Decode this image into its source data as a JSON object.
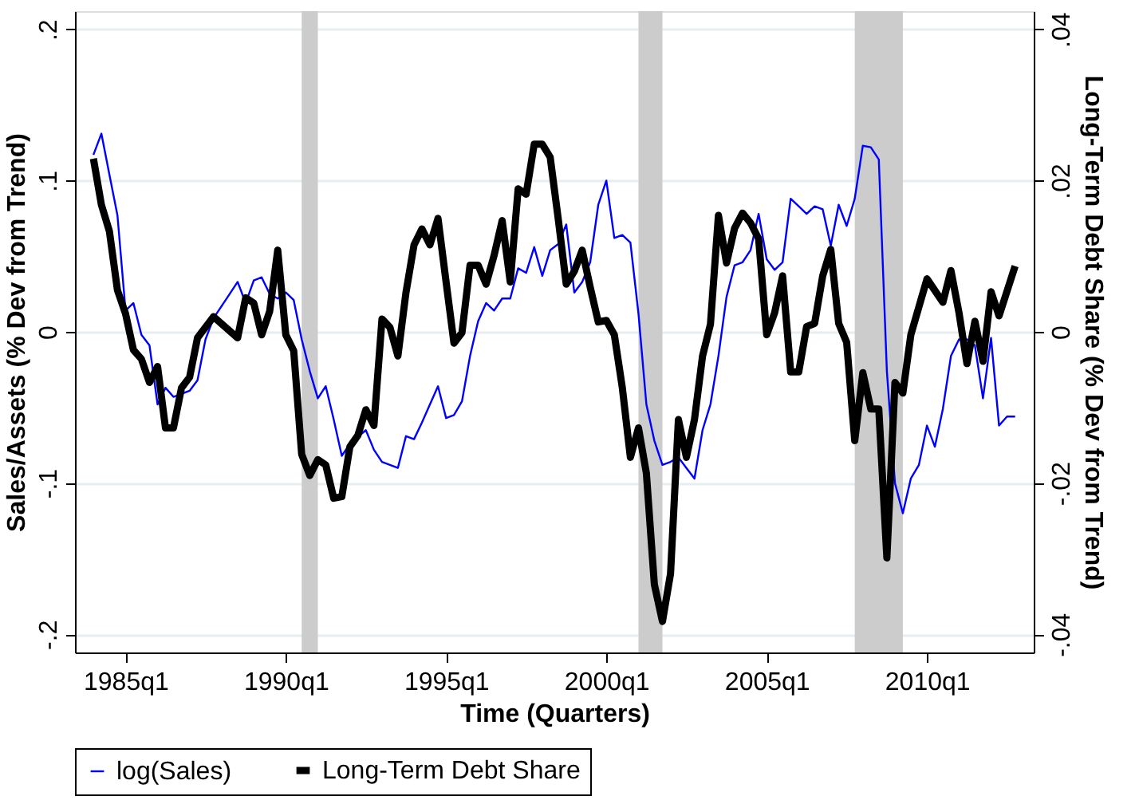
{
  "chart_data": {
    "type": "line",
    "xlabel": "Time (Quarters)",
    "ylabel": "Sales/Assets (% Dev from Trend)",
    "y2label": "Long-Term Debt Share (% Dev from Trend)",
    "xlim": [
      "1983-06-05",
      "2013-05-01"
    ],
    "xticks": [
      {
        "value": "1985-01",
        "label": "1985q1"
      },
      {
        "value": "1990-01",
        "label": "1990q1"
      },
      {
        "value": "1995-01",
        "label": "1995q1"
      },
      {
        "value": "2000-01",
        "label": "2000q1"
      },
      {
        "value": "2005-01",
        "label": "2005q1"
      },
      {
        "value": "2010-01",
        "label": "2010q1"
      }
    ],
    "ylim": [
      -0.212,
      0.212
    ],
    "yticks": [
      {
        "value": -0.2,
        "label": "-.2"
      },
      {
        "value": -0.1,
        "label": "-.1"
      },
      0,
      {
        "value": 0.1,
        "label": ".1"
      },
      {
        "value": 0.2,
        "label": ".2"
      }
    ],
    "y2lim": [
      -0.0424,
      0.0424
    ],
    "y2ticks": [
      {
        "value": -0.04,
        "label": "-.04"
      },
      {
        "value": -0.02,
        "label": "-.02"
      },
      0,
      {
        "value": 0.02,
        "label": ".02"
      },
      {
        "value": 0.04,
        "label": ".04"
      }
    ],
    "grid": "y",
    "legend": "bottom",
    "line_style": "solid",
    "marker": "none",
    "bands": [
      {
        "axis": "x",
        "from": "1990-07",
        "to": "1991-01",
        "color": "#cccccc"
      },
      {
        "axis": "x",
        "from": "2001-01",
        "to": "2001-10",
        "color": "#cccccc"
      },
      {
        "axis": "x",
        "from": "2007-10",
        "to": "2009-04",
        "color": "#cccccc"
      }
    ],
    "series": [
      {
        "name": "log(Sales)",
        "color": "#0000ff",
        "x": [
          "1984-01",
          "1984-04",
          "1984-07",
          "1984-10",
          "1985-01",
          "1985-04",
          "1985-07",
          "1985-10",
          "1986-01",
          "1986-04",
          "1986-07",
          "1987-01",
          "1987-04",
          "1987-07",
          "1987-10",
          "1988-04",
          "1988-07",
          "1988-10",
          "1989-01",
          "1989-04",
          "1989-07",
          "1989-10",
          "1990-01",
          "1990-04",
          "1990-07",
          "1990-10",
          "1991-01",
          "1991-04",
          "1991-07",
          "1991-10",
          "1992-01",
          "1992-07",
          "1992-10",
          "1993-01",
          "1993-07",
          "1993-10",
          "1994-01",
          "1994-04",
          "1994-07",
          "1994-10",
          "1995-01",
          "1995-04",
          "1995-07",
          "1995-10",
          "1996-01",
          "1996-04",
          "1996-07",
          "1996-10",
          "1997-01",
          "1997-04",
          "1997-07",
          "1997-10",
          "1998-01",
          "1998-04",
          "1998-07",
          "1998-10",
          "1999-01",
          "1999-04",
          "1999-07",
          "1999-10",
          "2000-01",
          "2000-04",
          "2000-07",
          "2000-10",
          "2001-01",
          "2001-04",
          "2001-07",
          "2001-10",
          "2002-01",
          "2002-04",
          "2002-07",
          "2002-10",
          "2003-01",
          "2003-04",
          "2003-07",
          "2003-10",
          "2004-01",
          "2004-04",
          "2004-07",
          "2004-10",
          "2005-01",
          "2005-04",
          "2005-07",
          "2005-10",
          "2006-01",
          "2006-04",
          "2006-07",
          "2006-10",
          "2007-01",
          "2007-04",
          "2007-07",
          "2007-10",
          "2008-01",
          "2008-04",
          "2008-07",
          "2008-10",
          "2009-01",
          "2009-04",
          "2009-07",
          "2009-10",
          "2010-01",
          "2010-04",
          "2010-07",
          "2010-10",
          "2011-01",
          "2011-04",
          "2011-07",
          "2011-10",
          "2012-01",
          "2012-04",
          "2012-07",
          "2012-10"
        ],
        "values": [
          0.117,
          0.131,
          0.104,
          0.077,
          0.014,
          0.019,
          -0.002,
          -0.009,
          -0.048,
          -0.037,
          -0.043,
          -0.039,
          -0.032,
          -0.005,
          0.009,
          0.025,
          0.033,
          0.019,
          0.034,
          0.036,
          0.025,
          0.022,
          0.026,
          0.021,
          -0.005,
          -0.026,
          -0.044,
          -0.036,
          -0.058,
          -0.082,
          -0.074,
          -0.065,
          -0.078,
          -0.086,
          -0.09,
          -0.069,
          -0.071,
          -0.06,
          -0.048,
          -0.036,
          -0.057,
          -0.055,
          -0.046,
          -0.016,
          0.007,
          0.019,
          0.014,
          0.022,
          0.022,
          0.042,
          0.039,
          0.056,
          0.037,
          0.054,
          0.058,
          0.071,
          0.026,
          0.033,
          0.046,
          0.084,
          0.1,
          0.062,
          0.064,
          0.059,
          0.012,
          -0.048,
          -0.072,
          -0.088,
          -0.086,
          -0.083,
          -0.09,
          -0.097,
          -0.065,
          -0.048,
          -0.016,
          0.023,
          0.044,
          0.046,
          0.054,
          0.078,
          0.048,
          0.041,
          0.046,
          0.088,
          0.083,
          0.078,
          0.083,
          0.081,
          0.057,
          0.084,
          0.07,
          0.088,
          0.123,
          0.122,
          0.114,
          -0.026,
          -0.1,
          -0.12,
          -0.097,
          -0.088,
          -0.062,
          -0.076,
          -0.051,
          -0.016,
          -0.005,
          -0.005,
          -0.009,
          -0.044,
          -0.004,
          -0.062,
          -0.056,
          -0.056
        ]
      },
      {
        "name": "Long-Term Debt Share",
        "color": "#000000",
        "axis": "y2",
        "x": [
          "1984-01",
          "1984-04",
          "1984-07",
          "1984-10",
          "1985-01",
          "1985-04",
          "1985-07",
          "1985-10",
          "1986-01",
          "1986-04",
          "1986-07",
          "1986-10",
          "1987-01",
          "1987-04",
          "1987-10",
          "1988-07",
          "1988-10",
          "1989-01",
          "1989-04",
          "1989-07",
          "1989-10",
          "1990-01",
          "1990-04",
          "1990-07",
          "1990-10",
          "1991-01",
          "1991-04",
          "1991-07",
          "1991-10",
          "1992-01",
          "1992-04",
          "1992-07",
          "1992-10",
          "1993-01",
          "1993-04",
          "1993-07",
          "1993-10",
          "1994-01",
          "1994-04",
          "1994-07",
          "1994-10",
          "1995-01",
          "1995-04",
          "1995-07",
          "1995-10",
          "1996-01",
          "1996-04",
          "1996-07",
          "1996-10",
          "1997-01",
          "1997-04",
          "1997-07",
          "1997-10",
          "1998-01",
          "1998-04",
          "1998-07",
          "1998-10",
          "1999-01",
          "1999-04",
          "1999-07",
          "1999-10",
          "2000-01",
          "2000-04",
          "2000-07",
          "2000-10",
          "2001-01",
          "2001-04",
          "2001-07",
          "2001-10",
          "2002-01",
          "2002-04",
          "2002-07",
          "2002-10",
          "2003-01",
          "2003-04",
          "2003-07",
          "2003-10",
          "2004-01",
          "2004-04",
          "2004-07",
          "2004-10",
          "2005-01",
          "2005-04",
          "2005-07",
          "2005-10",
          "2006-01",
          "2006-04",
          "2006-07",
          "2006-10",
          "2007-01",
          "2007-04",
          "2007-07",
          "2007-10",
          "2008-01",
          "2008-04",
          "2008-07",
          "2008-10",
          "2009-01",
          "2009-04",
          "2009-07",
          "2010-01",
          "2010-07",
          "2010-10",
          "2011-01",
          "2011-04",
          "2011-07",
          "2011-10",
          "2012-01",
          "2012-04",
          "2012-10"
        ],
        "values": [
          0.0229,
          0.0168,
          0.0133,
          0.0055,
          0.0024,
          -0.0024,
          -0.0036,
          -0.0067,
          -0.0046,
          -0.0127,
          -0.0127,
          -0.0074,
          -0.006,
          -0.0008,
          0.002,
          -0.0008,
          0.0045,
          0.0038,
          -0.0004,
          0.0027,
          0.0108,
          -0.0004,
          -0.0025,
          -0.0162,
          -0.019,
          -0.0169,
          -0.0176,
          -0.022,
          -0.0218,
          -0.0152,
          -0.0137,
          -0.0103,
          -0.0124,
          0.0017,
          0.0006,
          -0.0032,
          0.0052,
          0.0115,
          0.0136,
          0.0115,
          0.015,
          0.0066,
          -0.0015,
          -0.0001,
          0.0088,
          0.0088,
          0.0063,
          0.0101,
          0.0147,
          0.0066,
          0.0189,
          0.0182,
          0.0248,
          0.0248,
          0.0231,
          0.015,
          0.0063,
          0.008,
          0.0108,
          0.0059,
          0.0013,
          0.0015,
          -0.0004,
          -0.0074,
          -0.0166,
          -0.0127,
          -0.0187,
          -0.0334,
          -0.0383,
          -0.032,
          -0.0116,
          -0.0166,
          -0.0116,
          -0.0032,
          0.001,
          0.0154,
          0.0091,
          0.0137,
          0.0157,
          0.0144,
          0.0123,
          -0.0004,
          0.0025,
          0.0074,
          -0.0053,
          -0.0053,
          0.0007,
          0.0011,
          0.0074,
          0.0109,
          0.0011,
          -0.0014,
          -0.0144,
          -0.0054,
          -0.0102,
          -0.0102,
          -0.0299,
          -0.0067,
          -0.0081,
          -0.0004,
          0.007,
          0.0039,
          0.0081,
          0.0025,
          -0.0042,
          0.0014,
          -0.0039,
          0.0053,
          0.0021,
          0.0087
        ]
      }
    ]
  }
}
